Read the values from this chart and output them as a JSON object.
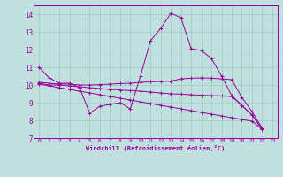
{
  "bg_color": "#c0e0e0",
  "grid_color": "#a0c8c8",
  "line_color": "#990099",
  "xlabel": "Windchill (Refroidissement éolien,°C)",
  "xlim": [
    -0.5,
    23.5
  ],
  "ylim": [
    7,
    14.5
  ],
  "yticks": [
    7,
    8,
    9,
    10,
    11,
    12,
    13,
    14
  ],
  "xticks": [
    0,
    1,
    2,
    3,
    4,
    5,
    6,
    7,
    8,
    9,
    10,
    11,
    12,
    13,
    14,
    15,
    16,
    17,
    18,
    19,
    20,
    21,
    22,
    23
  ],
  "series": [
    {
      "x": [
        0,
        1,
        2,
        3,
        4,
        5,
        6,
        7,
        8,
        9,
        10,
        11,
        12,
        13,
        14,
        15,
        16,
        17,
        18,
        19,
        20,
        21,
        22
      ],
      "y": [
        11.0,
        10.4,
        10.1,
        10.1,
        9.85,
        8.4,
        8.8,
        8.9,
        9.0,
        8.65,
        10.5,
        12.5,
        13.2,
        14.05,
        13.8,
        12.05,
        11.95,
        11.5,
        10.5,
        9.4,
        8.85,
        8.3,
        7.55
      ]
    },
    {
      "x": [
        0,
        1,
        2,
        3,
        4,
        5,
        6,
        7,
        8,
        9,
        10,
        11,
        12,
        13,
        14,
        15,
        16,
        17,
        18,
        19,
        20,
        21,
        22
      ],
      "y": [
        10.15,
        10.1,
        10.05,
        10.05,
        10.0,
        10.0,
        10.02,
        10.05,
        10.08,
        10.1,
        10.15,
        10.18,
        10.2,
        10.22,
        10.35,
        10.38,
        10.4,
        10.38,
        10.35,
        10.3,
        9.3,
        8.5,
        7.55
      ]
    },
    {
      "x": [
        0,
        1,
        2,
        3,
        4,
        5,
        6,
        7,
        8,
        9,
        10,
        11,
        12,
        13,
        14,
        15,
        16,
        17,
        18,
        19,
        20,
        21,
        22
      ],
      "y": [
        10.05,
        9.95,
        9.85,
        9.75,
        9.65,
        9.55,
        9.45,
        9.35,
        9.25,
        9.15,
        9.05,
        8.95,
        8.85,
        8.75,
        8.65,
        8.55,
        8.45,
        8.35,
        8.25,
        8.15,
        8.05,
        7.95,
        7.5
      ]
    },
    {
      "x": [
        0,
        1,
        2,
        3,
        4,
        5,
        6,
        7,
        8,
        9,
        10,
        11,
        12,
        13,
        14,
        15,
        16,
        17,
        18,
        19,
        20,
        21,
        22
      ],
      "y": [
        10.1,
        10.0,
        10.0,
        9.95,
        9.9,
        9.85,
        9.8,
        9.75,
        9.72,
        9.68,
        9.65,
        9.6,
        9.55,
        9.5,
        9.48,
        9.45,
        9.42,
        9.4,
        9.38,
        9.35,
        8.85,
        8.3,
        7.5
      ]
    }
  ]
}
